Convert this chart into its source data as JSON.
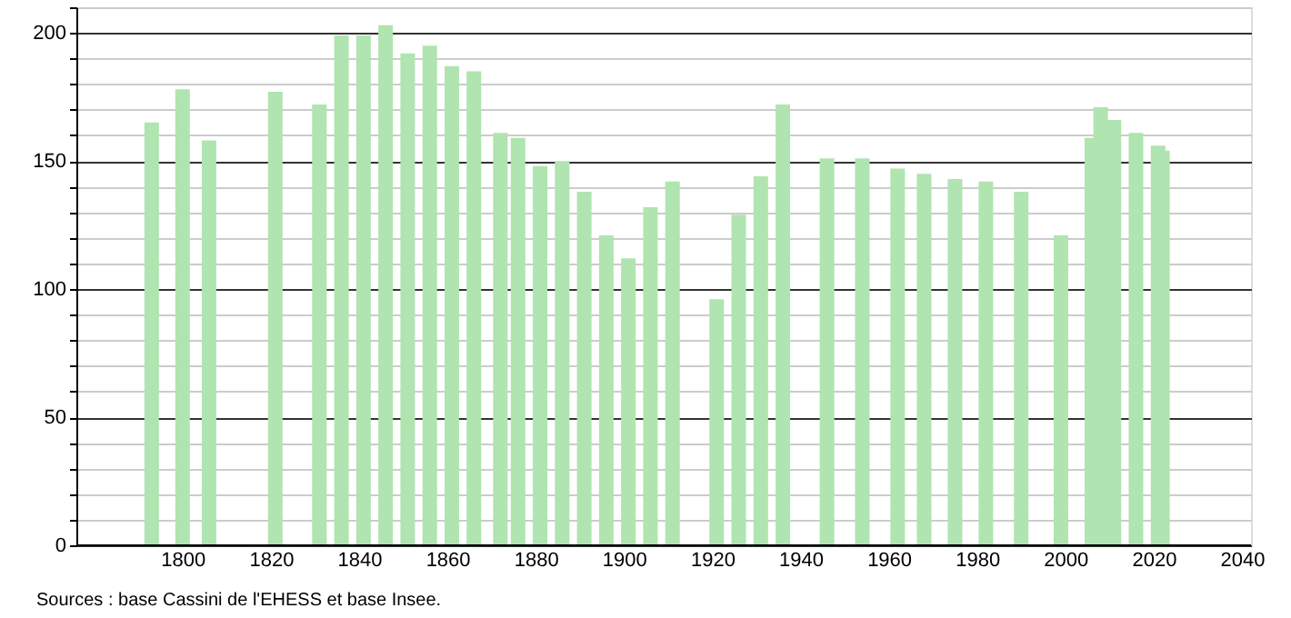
{
  "chart_data": {
    "type": "bar",
    "color": "#b0e4b0",
    "x": [
      1793,
      1800,
      1806,
      1821,
      1831,
      1836,
      1841,
      1846,
      1851,
      1856,
      1861,
      1866,
      1872,
      1876,
      1881,
      1886,
      1891,
      1896,
      1901,
      1906,
      1911,
      1921,
      1926,
      1931,
      1936,
      1946,
      1954,
      1962,
      1968,
      1975,
      1982,
      1990,
      1999,
      2006,
      2008,
      2011,
      2016,
      2021,
      2022
    ],
    "values": [
      165,
      178,
      158,
      177,
      172,
      199,
      199,
      203,
      192,
      195,
      187,
      185,
      161,
      159,
      148,
      150,
      138,
      121,
      112,
      132,
      142,
      96,
      129,
      144,
      172,
      151,
      151,
      147,
      145,
      143,
      142,
      138,
      121,
      159,
      171,
      166,
      161,
      156,
      154
    ],
    "xlim": [
      1778,
      2040
    ],
    "xticks": [
      1800,
      1820,
      1840,
      1860,
      1880,
      1900,
      1920,
      1940,
      1960,
      1980,
      2000,
      2020,
      2040
    ],
    "ylim": [
      0,
      210
    ],
    "yticks": [
      0,
      {
        "value": 10,
        "label": null
      },
      {
        "value": 20,
        "label": null
      },
      {
        "value": 30,
        "label": null
      },
      {
        "value": 40,
        "label": null
      },
      50,
      {
        "value": 60,
        "label": null
      },
      {
        "value": 70,
        "label": null
      },
      {
        "value": 80,
        "label": null
      },
      {
        "value": 90,
        "label": null
      },
      100,
      {
        "value": 110,
        "label": null
      },
      {
        "value": 120,
        "label": null
      },
      {
        "value": 130,
        "label": null
      },
      {
        "value": 140,
        "label": null
      },
      150,
      {
        "value": 160,
        "label": null
      },
      {
        "value": 170,
        "label": null
      },
      {
        "value": 180,
        "label": null
      },
      {
        "value": 190,
        "label": null
      },
      200,
      {
        "value": 210,
        "label": null
      }
    ],
    "grid": "y",
    "annotations": [
      "Sources : base Cassini de l'EHESS et base Insee."
    ]
  }
}
